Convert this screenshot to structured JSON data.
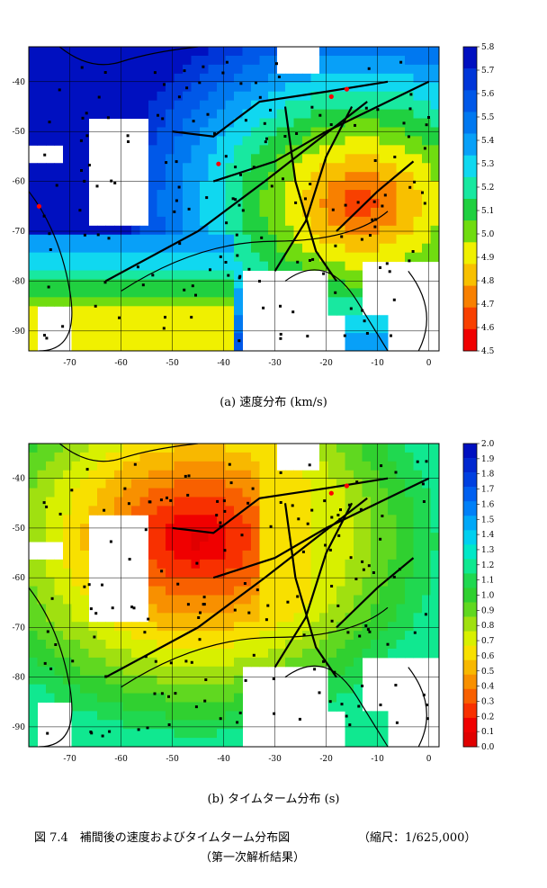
{
  "chart_data": [
    {
      "type": "heatmap",
      "caption": "(a) 速度分布 (km/s)",
      "x_ticks": [
        -70,
        -60,
        -50,
        -40,
        -30,
        -20,
        -10,
        0
      ],
      "y_ticks": [
        -40,
        -50,
        -60,
        -70,
        -80,
        -90
      ],
      "xlim": [
        -78,
        2
      ],
      "ylim": [
        -94,
        -33
      ],
      "colorbar": {
        "ticks": [
          "5.8",
          "5.7",
          "5.6",
          "5.5",
          "5.4",
          "5.3",
          "5.2",
          "5.1",
          "5.0",
          "4.9",
          "4.8",
          "4.7",
          "4.6",
          "4.5"
        ],
        "colors": [
          "#0010c0",
          "#0036d8",
          "#0058e8",
          "#0078f0",
          "#08a0f8",
          "#10d8f0",
          "#18e8a0",
          "#20d040",
          "#70dc10",
          "#f0f000",
          "#f8c000",
          "#f88000",
          "#f84000",
          "#f00000"
        ]
      }
    },
    {
      "type": "heatmap",
      "caption": "(b) タイムターム分布 (s)",
      "x_ticks": [
        -70,
        -60,
        -50,
        -40,
        -30,
        -20,
        -10,
        0
      ],
      "y_ticks": [
        -40,
        -50,
        -60,
        -70,
        -80,
        -90
      ],
      "xlim": [
        -78,
        2
      ],
      "ylim": [
        -94,
        -33
      ],
      "colorbar": {
        "ticks": [
          "2.0",
          "1.9",
          "1.8",
          "1.7",
          "1.6",
          "1.5",
          "1.4",
          "1.3",
          "1.2",
          "1.1",
          "1.0",
          "0.9",
          "0.8",
          "0.7",
          "0.6",
          "0.5",
          "0.4",
          "0.3",
          "0.2",
          "0.1",
          "0.0"
        ],
        "colors": [
          "#0010c0",
          "#0028d0",
          "#0040e0",
          "#0060f0",
          "#0080f8",
          "#00a8f8",
          "#00d0f0",
          "#00e8c8",
          "#10e890",
          "#20d850",
          "#30d030",
          "#60d820",
          "#a0e010",
          "#d8f000",
          "#f8e000",
          "#f8b800",
          "#f89000",
          "#f86000",
          "#f83000",
          "#f00000",
          "#e00000"
        ]
      }
    }
  ],
  "figure_caption": {
    "line1_left": "図 7.4　補間後の速度およびタイムターム分布図",
    "line1_right": "（縮尺：1/625,000）",
    "line2": "（第一次解析結果）"
  }
}
